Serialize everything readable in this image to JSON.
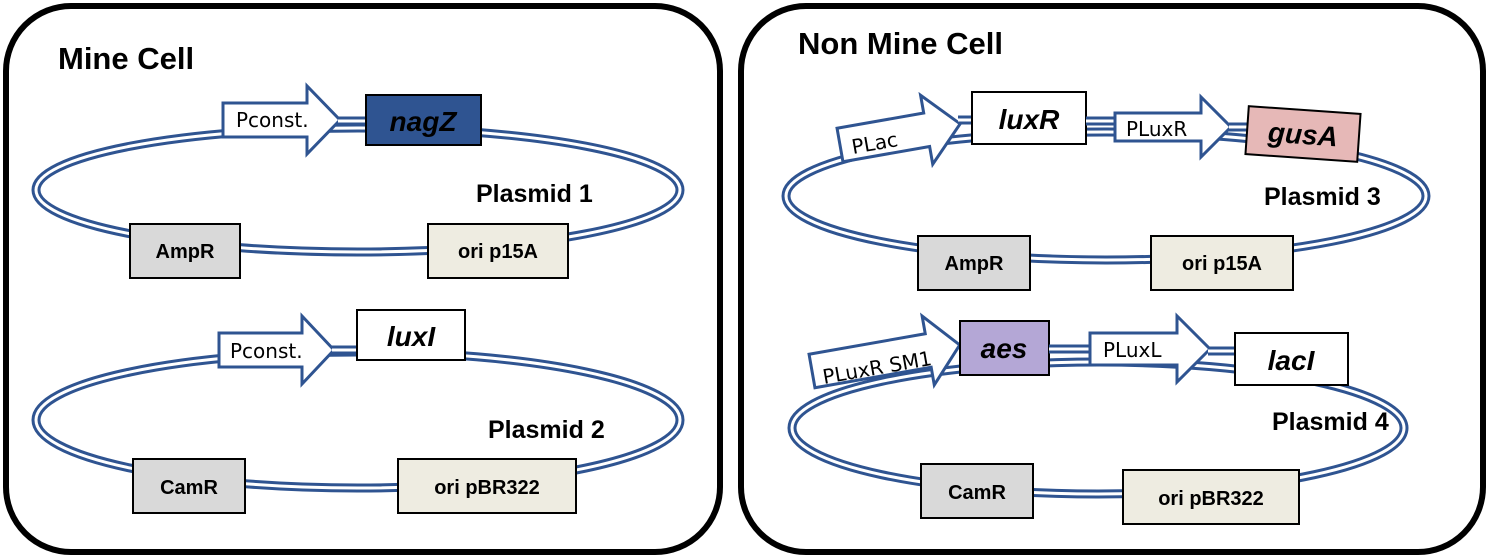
{
  "colors": {
    "backbone": "#2f5491",
    "marker_box": "#d9d9d9",
    "ori_box": "#eeece1",
    "nagZ": "#2f5491",
    "gusA": "#e6b8b7",
    "aes": "#b4a7d6",
    "plain_gene": "#ffffff"
  },
  "cells": [
    {
      "title": "Mine Cell",
      "plasmids": [
        {
          "label": "Plasmid 1",
          "promoters": [
            "Pconst."
          ],
          "genes": [
            "nagZ"
          ],
          "marker": "AmpR",
          "ori": "ori p15A"
        },
        {
          "label": "Plasmid 2",
          "promoters": [
            "Pconst."
          ],
          "genes": [
            "luxI"
          ],
          "marker": "CamR",
          "ori": "ori pBR322"
        }
      ]
    },
    {
      "title": "Non Mine Cell",
      "plasmids": [
        {
          "label": "Plasmid 3",
          "promoters": [
            "PLac",
            "PLuxR"
          ],
          "genes": [
            "luxR",
            "gusA"
          ],
          "marker": "AmpR",
          "ori": "ori p15A"
        },
        {
          "label": "Plasmid 4",
          "promoters": [
            "PLuxR SM1",
            "PLuxL"
          ],
          "genes": [
            "aes",
            "lacI"
          ],
          "marker": "CamR",
          "ori": "ori pBR322"
        }
      ]
    }
  ]
}
